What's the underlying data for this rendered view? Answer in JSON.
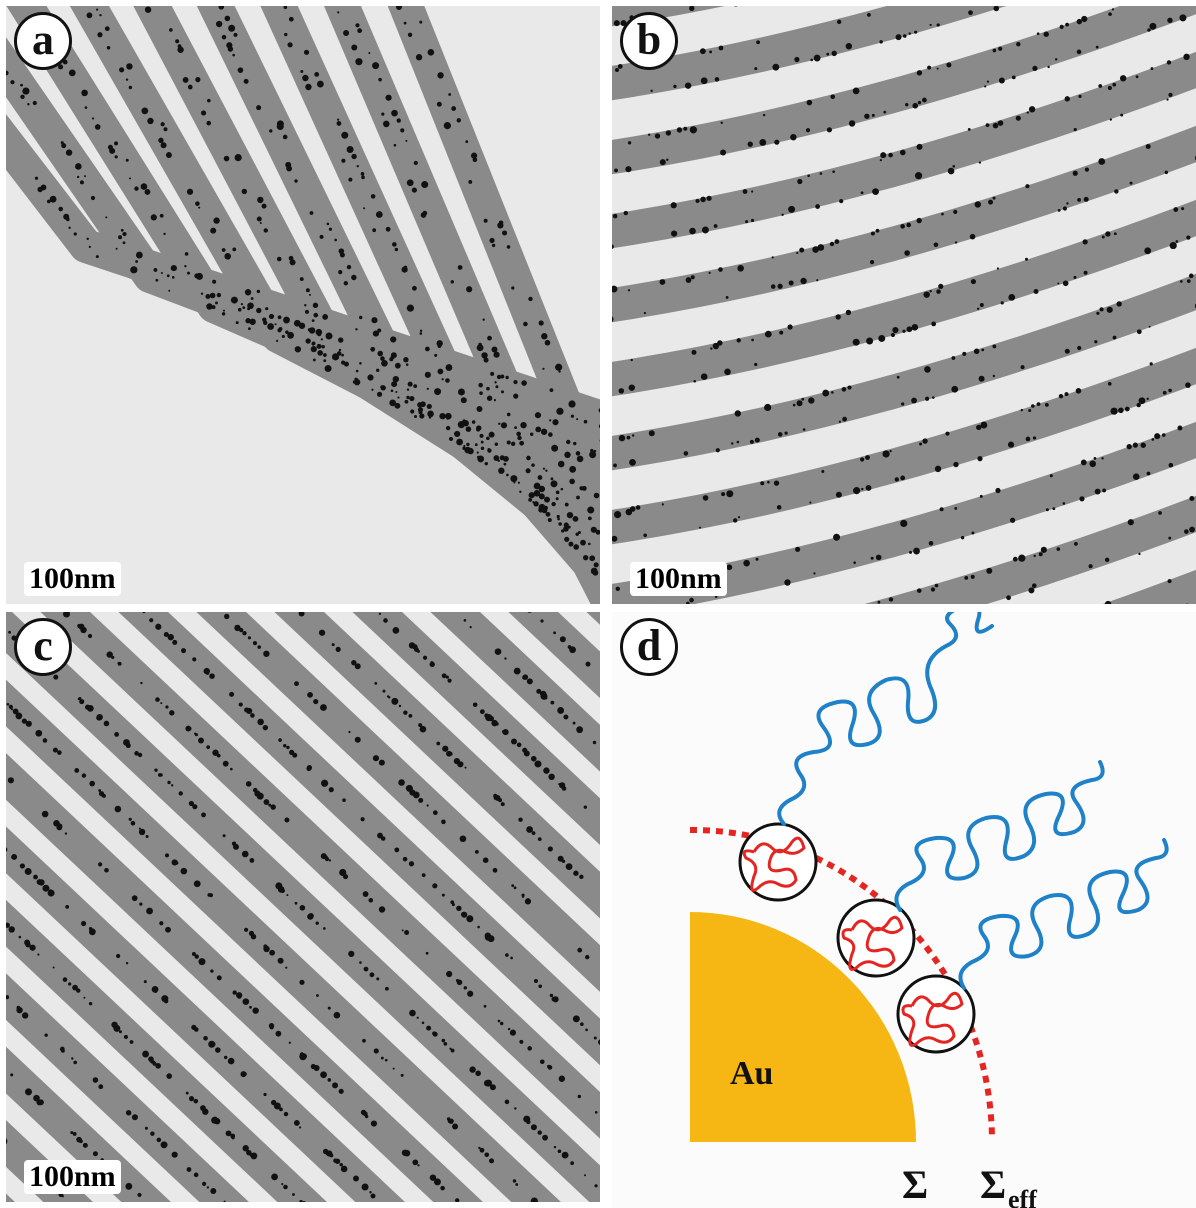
{
  "panels": [
    {
      "id": "a",
      "label": "a",
      "scale_bar": "100nm",
      "pattern": "chevron lamellae"
    },
    {
      "id": "b",
      "label": "b",
      "scale_bar": "100nm",
      "pattern": "curved lamellae"
    },
    {
      "id": "c",
      "label": "c",
      "scale_bar": "100nm",
      "pattern": "diagonal lamellae"
    },
    {
      "id": "d",
      "label": "d"
    }
  ],
  "schematic": {
    "core_label": "Au",
    "sigma_label": "Σ",
    "sigma_eff_label": "Σ",
    "sigma_eff_subscript": "eff",
    "colors": {
      "core": "#f6b715",
      "brush": "#1f82c8",
      "grafted_coil": "#e52521",
      "dashed_arc": "#e52521",
      "stripe_dark": "#8a8a8a",
      "stripe_light": "#e9e9e9",
      "particle": "#111111"
    }
  }
}
